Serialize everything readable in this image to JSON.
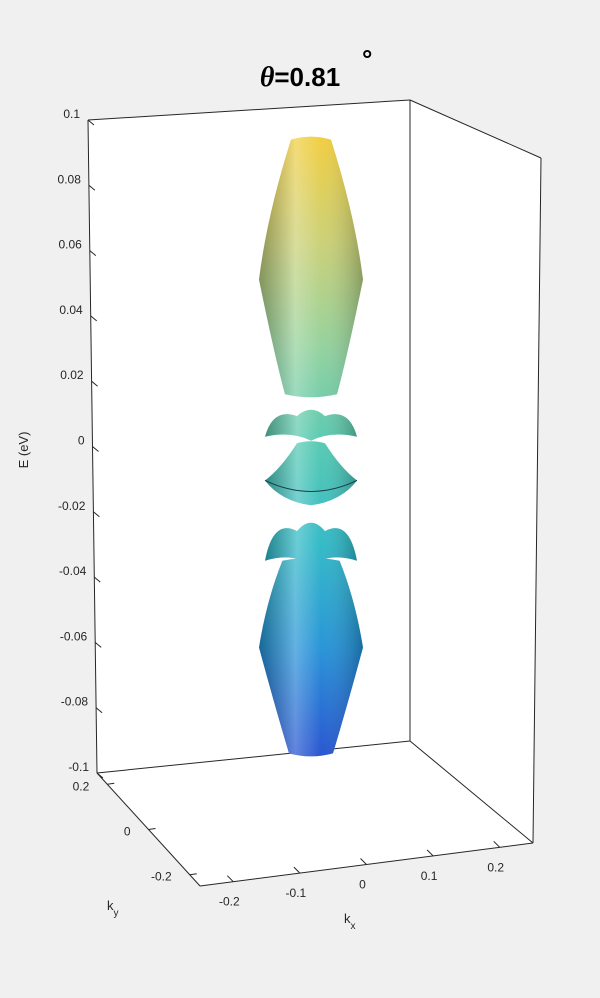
{
  "chart_data": {
    "type": "surface",
    "title": {
      "symbol": "θ",
      "text": "=0.81",
      "degree": "°"
    },
    "zlabel": "E (eV)",
    "xlabel": {
      "base": "k",
      "sub": "x"
    },
    "ylabel": {
      "base": "k",
      "sub": "y"
    },
    "zlim": [
      -0.1,
      0.1
    ],
    "xlim": [
      -0.25,
      0.25
    ],
    "ylim": [
      -0.25,
      0.25
    ],
    "z_ticks": [
      "0.1",
      "0.08",
      "0.06",
      "0.04",
      "0.02",
      "0",
      "-0.02",
      "-0.04",
      "-0.06",
      "-0.08",
      "-0.1"
    ],
    "x_ticks": [
      "-0.2",
      "-0.1",
      "0",
      "0.1",
      "0.2"
    ],
    "y_ticks": [
      "0.2",
      "0",
      "-0.2"
    ],
    "colormap": [
      "#1f4fcf",
      "#1f8fd6",
      "#2ab7c5",
      "#4fc7b0",
      "#8fd09a",
      "#c8cf72",
      "#f0cc3a"
    ],
    "bands": [
      {
        "name": "upper",
        "z_range": [
          0.016,
          0.094
        ],
        "shape": "spindle",
        "max_halfwidth_k": 0.07
      },
      {
        "name": "flat-upper",
        "z_range": [
          0.003,
          0.012
        ],
        "shape": "ruffled-sheet"
      },
      {
        "name": "flat-lower",
        "z_range": [
          -0.018,
          0.001
        ],
        "shape": "cone-pair"
      },
      {
        "name": "flat-bottom",
        "z_range": [
          -0.035,
          -0.022
        ],
        "shape": "ruffled-sheet"
      },
      {
        "name": "lower",
        "z_range": [
          -0.094,
          -0.035
        ],
        "shape": "spindle",
        "max_halfwidth_k": 0.07
      }
    ],
    "grid": false,
    "box": true
  }
}
